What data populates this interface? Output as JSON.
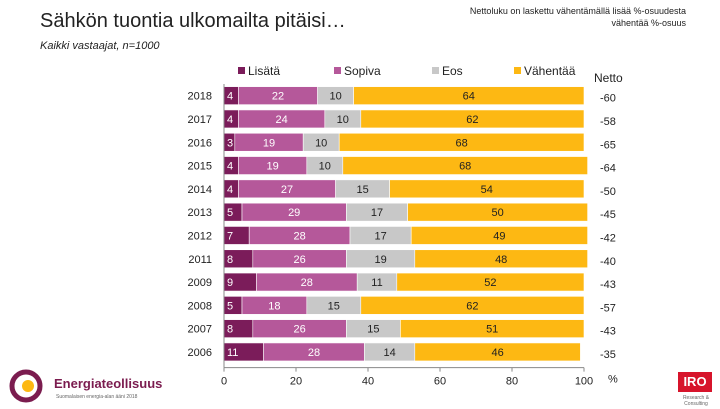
{
  "title": "Sähkön tuontia ulkomailta pitäisi…",
  "subtitle": "Kaikki vastaajat, n=1000",
  "note": "Nettoluku on laskettu vähentämällä lisää %-osuudesta vähentää %-osuus",
  "chart_data": {
    "type": "bar",
    "orientation": "horizontal",
    "stacked": true,
    "categories": [
      "2018",
      "2017",
      "2016",
      "2015",
      "2014",
      "2013",
      "2012",
      "2011",
      "2009",
      "2008",
      "2007",
      "2006"
    ],
    "series": [
      {
        "name": "Lisätä",
        "color": "#7b1c5a",
        "values": [
          4,
          4,
          3,
          4,
          4,
          5,
          7,
          8,
          9,
          5,
          8,
          11
        ]
      },
      {
        "name": "Sopiva",
        "color": "#b5589a",
        "values": [
          22,
          24,
          19,
          19,
          27,
          29,
          28,
          26,
          28,
          18,
          26,
          28
        ]
      },
      {
        "name": "Eos",
        "color": "#c8c8c8",
        "values": [
          10,
          10,
          10,
          10,
          15,
          17,
          17,
          19,
          11,
          15,
          15,
          14
        ]
      },
      {
        "name": "Vähentää",
        "color": "#fdb813",
        "values": [
          64,
          62,
          68,
          68,
          54,
          50,
          49,
          48,
          52,
          62,
          51,
          46
        ]
      }
    ],
    "netto_label": "Netto",
    "netto": [
      "-60",
      "-58",
      "-65",
      "-64",
      "-50",
      "-45",
      "-42",
      "-40",
      "-43",
      "-57",
      "-43",
      "-35"
    ],
    "xlim": [
      0,
      100
    ],
    "xticks": [
      "0",
      "20",
      "40",
      "60",
      "80",
      "100"
    ],
    "xunit": "%"
  },
  "logo_left": {
    "name": "Energiateollisuus",
    "tagline": "Suomalaisen energia-alan ääni 2018"
  },
  "logo_right": {
    "name": "IRO",
    "tagline": "Research & Consulting"
  }
}
